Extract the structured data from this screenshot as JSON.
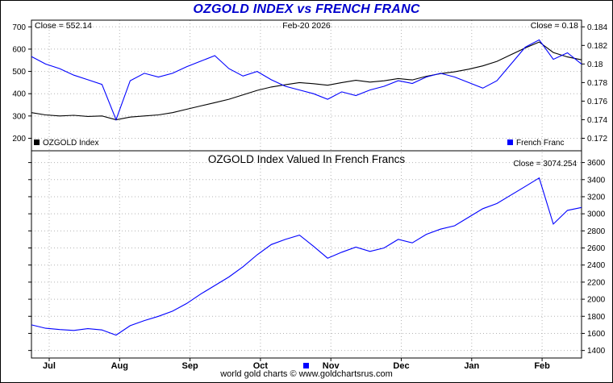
{
  "title": "OZGOLD INDEX vs FRENCH FRANC",
  "footer": {
    "text": "world gold charts © www.goldchartsrus.com",
    "marker_color": "#0000ff"
  },
  "colors": {
    "title": "#0000cc",
    "ozgold": "#000000",
    "franc": "#0000ff",
    "grid": "#b4b4b4",
    "frame": "#000000"
  },
  "chart_data": [
    {
      "type": "line",
      "panel": "top",
      "annotations": {
        "close_left": "Close = 552.14",
        "date": "Feb-20 2026",
        "close_right": "Close = 0.18"
      },
      "x_tick_labels": [
        "Jul",
        "Aug",
        "Sep",
        "Oct",
        "Nov",
        "Dec",
        "Jan",
        "Feb"
      ],
      "left_axis": {
        "ticks": [
          700,
          600,
          500,
          400,
          300,
          200
        ],
        "range": [
          200,
          700
        ]
      },
      "right_axis": {
        "ticks": [
          "0.184",
          "0.182",
          "0.18",
          "0.178",
          "0.176",
          "0.174",
          "0.172"
        ],
        "range": [
          0.172,
          0.184
        ]
      },
      "grid": true,
      "legend_position": "bottom",
      "series": [
        {
          "name": "OZGOLD Index",
          "color": "#000000",
          "axis": "left",
          "values": [
            315,
            305,
            300,
            303,
            298,
            300,
            283,
            295,
            300,
            305,
            315,
            330,
            345,
            360,
            375,
            395,
            415,
            430,
            440,
            450,
            445,
            438,
            450,
            460,
            452,
            458,
            468,
            462,
            478,
            490,
            498,
            510,
            525,
            545,
            575,
            605,
            632,
            585,
            565,
            552.14
          ]
        },
        {
          "name": "French Franc",
          "color": "#0000ff",
          "axis": "right",
          "values": [
            0.1808,
            0.18,
            0.1795,
            0.1788,
            0.1783,
            0.1778,
            0.174,
            0.1782,
            0.179,
            0.1786,
            0.179,
            0.1797,
            0.1803,
            0.1809,
            0.1795,
            0.1787,
            0.1792,
            0.1783,
            0.1776,
            0.1772,
            0.1768,
            0.1762,
            0.177,
            0.1766,
            0.1772,
            0.1776,
            0.1782,
            0.1779,
            0.1786,
            0.179,
            0.1786,
            0.178,
            0.1774,
            0.1782,
            0.18,
            0.1818,
            0.1826,
            0.1805,
            0.1812,
            0.18
          ]
        }
      ]
    },
    {
      "type": "line",
      "panel": "bottom",
      "title": "OZGOLD Index Valued In French Francs",
      "annotations": {
        "close_right": "Close = 3074.254"
      },
      "x_tick_labels": [
        "Jul",
        "Aug",
        "Sep",
        "Oct",
        "Nov",
        "Dec",
        "Jan",
        "Feb"
      ],
      "right_axis": {
        "ticks": [
          3600,
          3400,
          3200,
          3000,
          2800,
          2600,
          2400,
          2200,
          2000,
          1800,
          1600,
          1400
        ],
        "range": [
          1400,
          3600
        ]
      },
      "grid": true,
      "series": [
        {
          "name": "OZGOLD Index in French Francs",
          "color": "#0000ff",
          "axis": "right",
          "values": [
            1700,
            1660,
            1645,
            1635,
            1655,
            1640,
            1580,
            1690,
            1750,
            1800,
            1860,
            1950,
            2060,
            2160,
            2260,
            2380,
            2520,
            2640,
            2700,
            2750,
            2620,
            2480,
            2550,
            2610,
            2560,
            2600,
            2700,
            2660,
            2760,
            2820,
            2860,
            2960,
            3060,
            3120,
            3220,
            3320,
            3420,
            2880,
            3040,
            3074.254
          ]
        }
      ]
    }
  ]
}
